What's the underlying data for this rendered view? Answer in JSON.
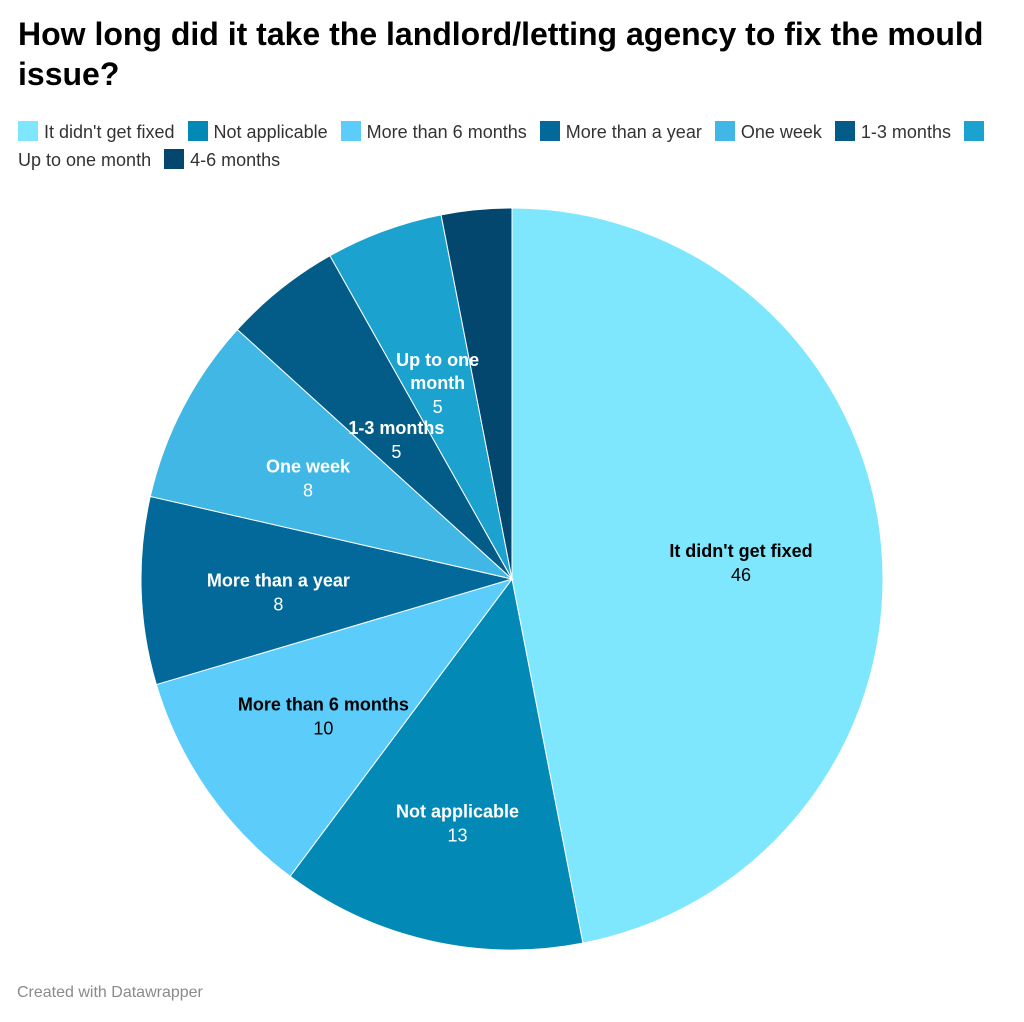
{
  "chart_data": {
    "type": "pie",
    "title": "How long did it take the landlord/letting agency to fix the mould issue?",
    "slices": [
      {
        "label": "It didn't get fixed",
        "value": 46,
        "color": "#7ee7fd",
        "text_color": "#000000"
      },
      {
        "label": "Not applicable",
        "value": 13,
        "color": "#0289b6",
        "text_color": "#ffffff"
      },
      {
        "label": "More than 6 months",
        "value": 10,
        "color": "#5ccdfb",
        "text_color": "#000000"
      },
      {
        "label": "More than a year",
        "value": 8,
        "color": "#02699a",
        "text_color": "#ffffff"
      },
      {
        "label": "One week",
        "value": 8,
        "color": "#41b7e5",
        "text_color": "#ffffff"
      },
      {
        "label": "1-3 months",
        "value": 5,
        "color": "#025c87",
        "text_color": "#ffffff"
      },
      {
        "label": "Up to one month",
        "value": 5,
        "color": "#1ba2cf",
        "text_color": "#ffffff"
      },
      {
        "label": "4-6 months",
        "value": 3,
        "color": "#03466e",
        "text_color": "#ffffff"
      }
    ],
    "legend_placement": "top"
  },
  "footer": {
    "credit": "Created with Datawrapper"
  }
}
